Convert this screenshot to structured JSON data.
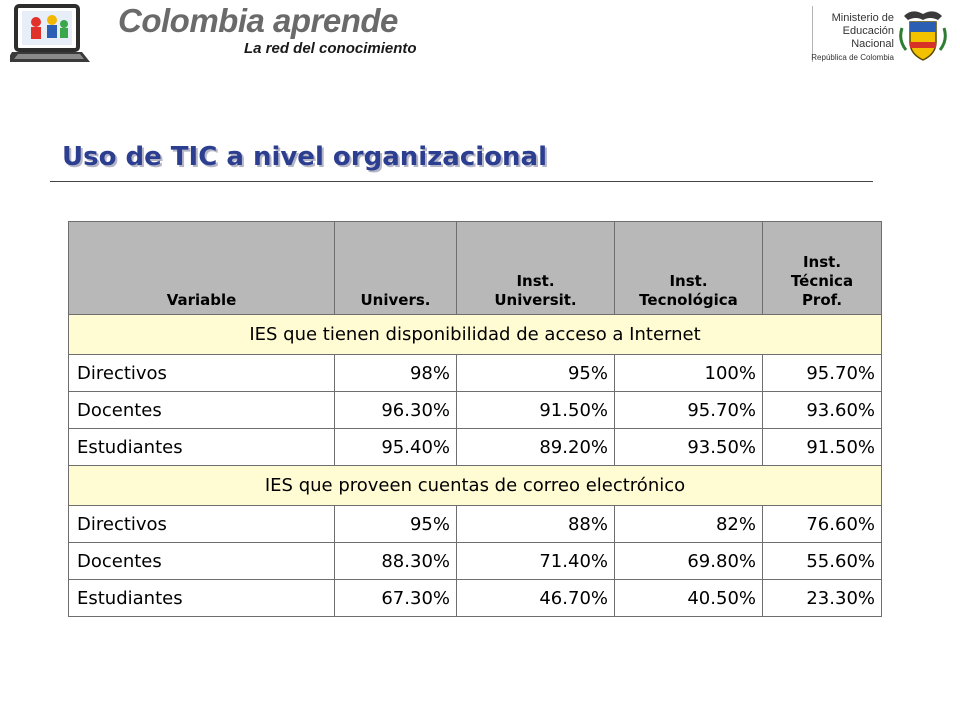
{
  "header": {
    "brand_title": "Colombia aprende",
    "brand_subtitle": "La red del conocimiento",
    "ministry_line1": "Ministerio de",
    "ministry_line2": "Educación",
    "ministry_line3": "Nacional",
    "ministry_line4": "República de Colombia"
  },
  "page_title": "Uso de TIC a nivel organizacional",
  "table": {
    "headers": [
      "Variable",
      "Univers.",
      "Inst.\nUniversit.",
      "Inst.\nTecnológica",
      "Inst.\nTécnica\nProf."
    ],
    "sections": [
      {
        "title": "IES que tienen disponibilidad de acceso a Internet",
        "rows": [
          [
            "Directivos",
            "98%",
            "95%",
            "100%",
            "95.70%"
          ],
          [
            "Docentes",
            "96.30%",
            "91.50%",
            "95.70%",
            "93.60%"
          ],
          [
            "Estudiantes",
            "95.40%",
            "89.20%",
            "93.50%",
            "91.50%"
          ]
        ]
      },
      {
        "title": "IES que proveen cuentas de correo electrónico",
        "rows": [
          [
            "Directivos",
            "95%",
            "88%",
            "82%",
            "76.60%"
          ],
          [
            "Docentes",
            "88.30%",
            "71.40%",
            "69.80%",
            "55.60%"
          ],
          [
            "Estudiantes",
            "67.30%",
            "46.70%",
            "40.50%",
            "23.30%"
          ]
        ]
      }
    ]
  },
  "colors": {
    "title": "#2c3e8f",
    "header_bg": "#b8b8b8",
    "section_bg": "#fffbd2",
    "border": "#6e6e6e"
  }
}
